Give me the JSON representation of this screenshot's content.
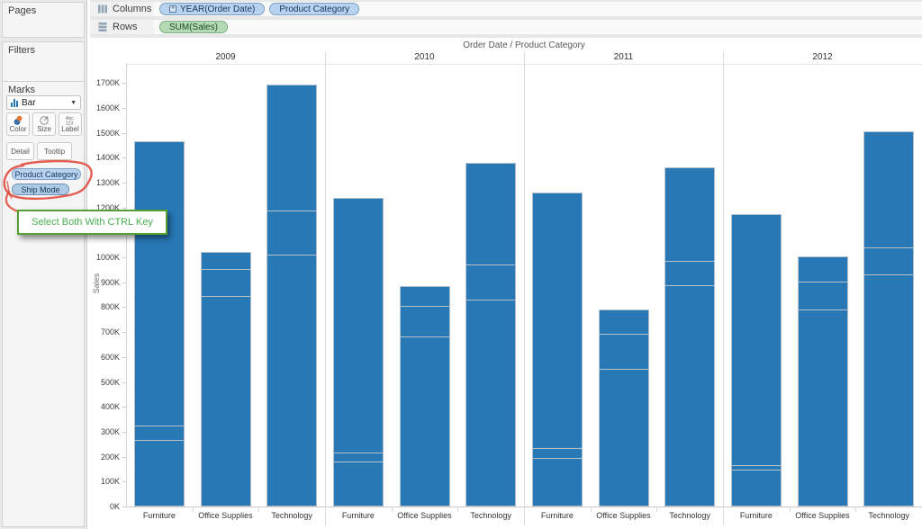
{
  "sidebar": {
    "pages": {
      "label": "Pages"
    },
    "filters": {
      "label": "Filters"
    },
    "marks": {
      "label": "Marks",
      "mark_type": "Bar",
      "buttons": {
        "color": "Color",
        "size": "Size",
        "label": "Label",
        "detail": "Detail",
        "tooltip": "Tooltip"
      },
      "detail_pills": [
        "Product Category",
        "Ship Mode"
      ]
    }
  },
  "shelves": {
    "columns": {
      "label": "Columns",
      "pills": [
        {
          "text": "YEAR(Order Date)",
          "expandable": true
        },
        {
          "text": "Product Category",
          "expandable": false
        }
      ]
    },
    "rows": {
      "label": "Rows",
      "pills": [
        {
          "text": "SUM(Sales)",
          "expandable": false
        }
      ]
    }
  },
  "annotations": {
    "callout_text": "Select Both With CTRL Key",
    "callout_border_color": "#55a033",
    "callout_text_color": "#4caf50",
    "freehand_circle_color": "#e14f41"
  },
  "chart_data": {
    "type": "bar",
    "stacked": true,
    "title": "Order Date  /  Product Category",
    "ylabel": "Sales",
    "ylim": [
      0,
      1780
    ],
    "ytick_step": 100,
    "ytick_max": 1700,
    "ytick_suffix": "K",
    "grid": "off",
    "bar_color": "#2878b6",
    "segment_divider_color": "#b6c0ca",
    "years": [
      "2009",
      "2010",
      "2011",
      "2012"
    ],
    "categories": [
      "Furniture",
      "Office Supplies",
      "Technology"
    ],
    "value_unit": "K (thousands of Sales)",
    "segments_order": "bottom-to-top",
    "bars": [
      {
        "year": "2009",
        "category": "Furniture",
        "total": 1465,
        "segments": [
          270,
          60,
          1135
        ]
      },
      {
        "year": "2009",
        "category": "Office Supplies",
        "total": 1020,
        "segments": [
          850,
          105,
          65
        ]
      },
      {
        "year": "2009",
        "category": "Technology",
        "total": 1695,
        "segments": [
          1015,
          175,
          505
        ]
      },
      {
        "year": "2010",
        "category": "Furniture",
        "total": 1240,
        "segments": [
          185,
          35,
          1020
        ]
      },
      {
        "year": "2010",
        "category": "Office Supplies",
        "total": 885,
        "segments": [
          685,
          125,
          75
        ]
      },
      {
        "year": "2010",
        "category": "Technology",
        "total": 1380,
        "segments": [
          835,
          140,
          405
        ]
      },
      {
        "year": "2011",
        "category": "Furniture",
        "total": 1260,
        "segments": [
          200,
          40,
          1020
        ]
      },
      {
        "year": "2011",
        "category": "Office Supplies",
        "total": 790,
        "segments": [
          555,
          140,
          95
        ]
      },
      {
        "year": "2011",
        "category": "Technology",
        "total": 1360,
        "segments": [
          890,
          100,
          370
        ]
      },
      {
        "year": "2012",
        "category": "Furniture",
        "total": 1175,
        "segments": [
          150,
          20,
          1005
        ]
      },
      {
        "year": "2012",
        "category": "Office Supplies",
        "total": 1005,
        "segments": [
          795,
          110,
          100
        ]
      },
      {
        "year": "2012",
        "category": "Technology",
        "total": 1505,
        "segments": [
          935,
          110,
          460
        ]
      }
    ]
  }
}
